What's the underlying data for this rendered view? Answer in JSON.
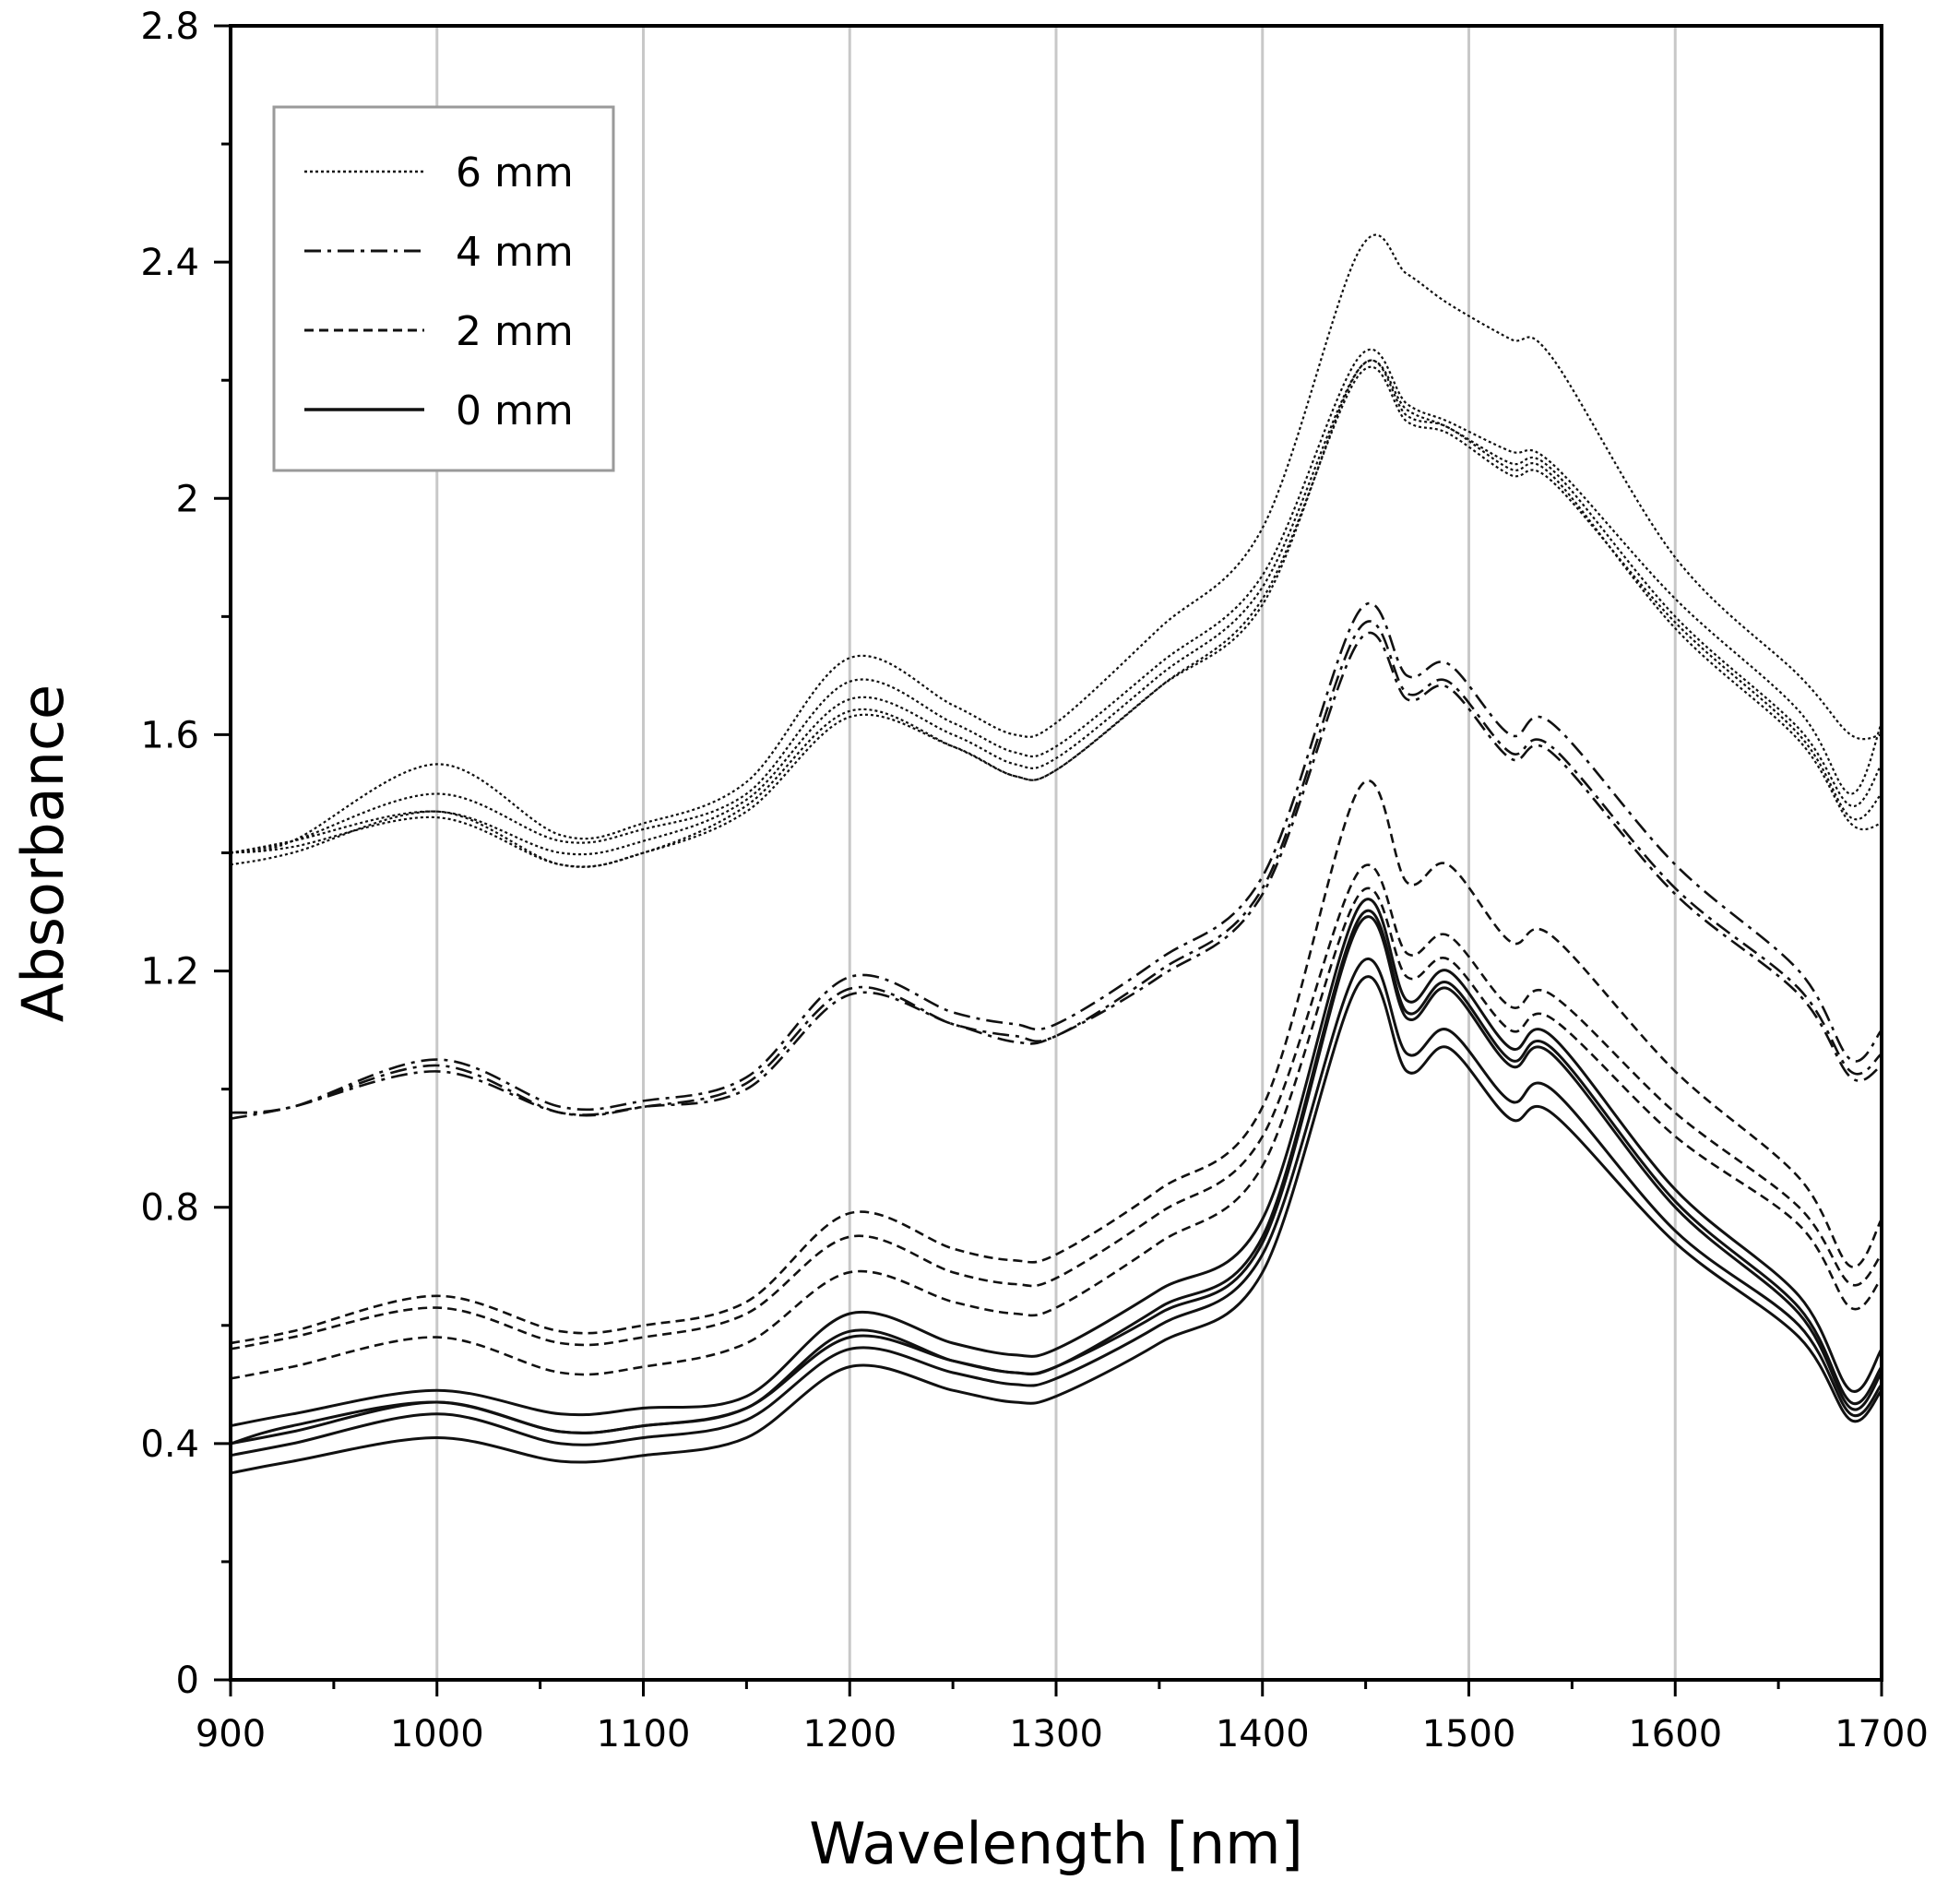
{
  "chart_data": {
    "type": "line",
    "title": "",
    "xlabel": "Wavelength [nm]",
    "ylabel": "Absorbance",
    "xlim": [
      900,
      1700
    ],
    "ylim": [
      0,
      2.8
    ],
    "xticks": [
      "900",
      "1000",
      "1100",
      "1200",
      "1300",
      "1400",
      "1500",
      "1600",
      "1700"
    ],
    "yticks": [
      "0",
      "0.4",
      "0.8",
      "1.2",
      "1.6",
      "2",
      "2.4",
      "2.8"
    ],
    "grid": "vertical",
    "legend_position": "top-left",
    "legend": [
      {
        "label": "6 mm",
        "style": "dotted"
      },
      {
        "label": "4 mm",
        "style": "dashdot"
      },
      {
        "label": "2 mm",
        "style": "dashed"
      },
      {
        "label": "0 mm",
        "style": "solid"
      }
    ],
    "x": [
      900,
      930,
      1000,
      1060,
      1100,
      1150,
      1200,
      1250,
      1280,
      1300,
      1350,
      1400,
      1447,
      1470,
      1490,
      1520,
      1540,
      1600,
      1660,
      1685,
      1700
    ],
    "series": [
      {
        "name": "6 mm",
        "style": "dotted",
        "values": [
          1.4,
          1.42,
          1.55,
          1.43,
          1.45,
          1.52,
          1.73,
          1.65,
          1.6,
          1.62,
          1.78,
          1.95,
          2.42,
          2.38,
          2.33,
          2.27,
          2.24,
          1.9,
          1.7,
          1.6,
          1.6
        ]
      },
      {
        "name": "6 mm",
        "style": "dotted",
        "values": [
          1.4,
          1.42,
          1.5,
          1.42,
          1.44,
          1.5,
          1.69,
          1.62,
          1.57,
          1.58,
          1.72,
          1.87,
          2.24,
          2.16,
          2.13,
          2.08,
          2.06,
          1.83,
          1.64,
          1.5,
          1.62
        ]
      },
      {
        "name": "6 mm",
        "style": "dotted",
        "values": [
          1.4,
          1.42,
          1.47,
          1.4,
          1.42,
          1.49,
          1.66,
          1.6,
          1.55,
          1.56,
          1.7,
          1.85,
          2.22,
          2.15,
          2.12,
          2.06,
          2.05,
          1.8,
          1.61,
          1.48,
          1.55
        ]
      },
      {
        "name": "6 mm",
        "style": "dotted",
        "values": [
          1.4,
          1.41,
          1.46,
          1.38,
          1.4,
          1.48,
          1.64,
          1.58,
          1.53,
          1.54,
          1.68,
          1.83,
          2.21,
          2.13,
          2.11,
          2.04,
          2.03,
          1.79,
          1.6,
          1.46,
          1.5
        ]
      },
      {
        "name": "6 mm",
        "style": "dotted",
        "values": [
          1.38,
          1.4,
          1.47,
          1.38,
          1.4,
          1.47,
          1.63,
          1.58,
          1.53,
          1.54,
          1.68,
          1.82,
          2.22,
          2.14,
          2.12,
          2.05,
          2.04,
          1.78,
          1.59,
          1.45,
          1.45
        ]
      },
      {
        "name": "4 mm",
        "style": "dashdot",
        "values": [
          0.96,
          0.97,
          1.05,
          0.97,
          0.98,
          1.02,
          1.19,
          1.13,
          1.11,
          1.11,
          1.22,
          1.36,
          1.81,
          1.7,
          1.72,
          1.6,
          1.62,
          1.38,
          1.2,
          1.05,
          1.1
        ]
      },
      {
        "name": "4 mm",
        "style": "dashdot",
        "values": [
          0.96,
          0.97,
          1.04,
          0.96,
          0.97,
          1.01,
          1.17,
          1.11,
          1.09,
          1.09,
          1.2,
          1.34,
          1.78,
          1.67,
          1.69,
          1.57,
          1.58,
          1.34,
          1.17,
          1.03,
          1.06
        ]
      },
      {
        "name": "4 mm",
        "style": "dashdot",
        "values": [
          0.95,
          0.97,
          1.03,
          0.96,
          0.97,
          1.0,
          1.16,
          1.11,
          1.08,
          1.09,
          1.19,
          1.33,
          1.76,
          1.66,
          1.68,
          1.56,
          1.57,
          1.33,
          1.16,
          1.02,
          1.04
        ]
      },
      {
        "name": "2 mm",
        "style": "dashed",
        "values": [
          0.57,
          0.59,
          0.65,
          0.59,
          0.6,
          0.64,
          0.79,
          0.73,
          0.71,
          0.72,
          0.83,
          0.97,
          1.51,
          1.35,
          1.38,
          1.25,
          1.26,
          1.03,
          0.85,
          0.7,
          0.78
        ]
      },
      {
        "name": "2 mm",
        "style": "dashed",
        "values": [
          0.56,
          0.58,
          0.63,
          0.57,
          0.58,
          0.62,
          0.75,
          0.69,
          0.67,
          0.68,
          0.79,
          0.92,
          1.37,
          1.23,
          1.26,
          1.14,
          1.16,
          0.96,
          0.8,
          0.67,
          0.72
        ]
      },
      {
        "name": "2 mm",
        "style": "dashed",
        "values": [
          0.51,
          0.53,
          0.58,
          0.52,
          0.53,
          0.57,
          0.69,
          0.64,
          0.62,
          0.63,
          0.74,
          0.87,
          1.33,
          1.19,
          1.22,
          1.1,
          1.12,
          0.92,
          0.77,
          0.63,
          0.68
        ]
      },
      {
        "name": "0 mm",
        "style": "solid",
        "values": [
          0.43,
          0.45,
          0.49,
          0.45,
          0.46,
          0.48,
          0.62,
          0.57,
          0.55,
          0.56,
          0.66,
          0.78,
          1.31,
          1.15,
          1.2,
          1.07,
          1.09,
          0.83,
          0.65,
          0.49,
          0.56
        ]
      },
      {
        "name": "0 mm",
        "style": "solid",
        "values": [
          0.4,
          0.43,
          0.47,
          0.42,
          0.43,
          0.46,
          0.59,
          0.54,
          0.52,
          0.53,
          0.63,
          0.75,
          1.29,
          1.13,
          1.18,
          1.05,
          1.07,
          0.81,
          0.63,
          0.47,
          0.53
        ]
      },
      {
        "name": "0 mm",
        "style": "solid",
        "values": [
          0.4,
          0.42,
          0.47,
          0.42,
          0.43,
          0.46,
          0.58,
          0.54,
          0.52,
          0.53,
          0.62,
          0.74,
          1.28,
          1.12,
          1.17,
          1.04,
          1.06,
          0.8,
          0.62,
          0.46,
          0.52
        ]
      },
      {
        "name": "0 mm",
        "style": "solid",
        "values": [
          0.38,
          0.4,
          0.45,
          0.4,
          0.41,
          0.44,
          0.56,
          0.52,
          0.5,
          0.51,
          0.6,
          0.72,
          1.21,
          1.06,
          1.1,
          0.98,
          1.0,
          0.76,
          0.6,
          0.45,
          0.5
        ]
      },
      {
        "name": "0 mm",
        "style": "solid",
        "values": [
          0.35,
          0.37,
          0.41,
          0.37,
          0.38,
          0.41,
          0.53,
          0.49,
          0.47,
          0.48,
          0.57,
          0.69,
          1.18,
          1.03,
          1.07,
          0.95,
          0.96,
          0.74,
          0.58,
          0.44,
          0.49
        ]
      }
    ]
  }
}
